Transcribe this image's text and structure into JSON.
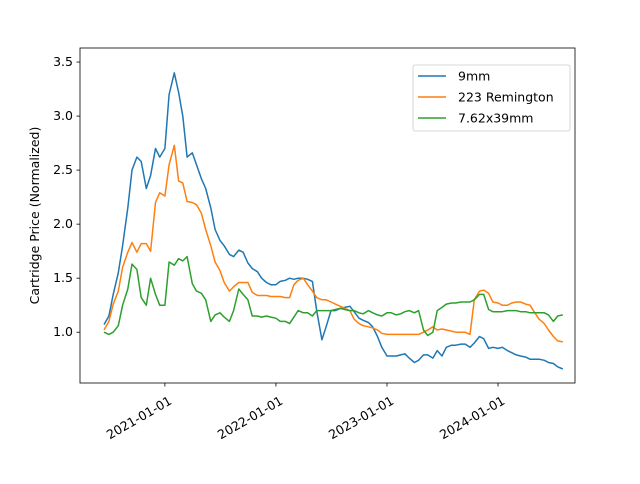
{
  "chart_data": {
    "type": "line",
    "title": "",
    "xlabel": "",
    "ylabel": "Cartridge Price (Normalized)",
    "xlim": [
      "2020-03-28",
      "2024-09-10"
    ],
    "ylim": [
      0.53,
      3.63
    ],
    "yticks": [
      "1.0",
      "1.5",
      "2.0",
      "2.5",
      "3.0",
      "3.5"
    ],
    "xticks": [
      "2021-01-01",
      "2022-01-01",
      "2023-01-01",
      "2024-01-01"
    ],
    "grid": false,
    "legend_position": "top-right",
    "x": [
      "2020-06-15",
      "2020-07-01",
      "2020-07-15",
      "2020-08-01",
      "2020-08-15",
      "2020-09-01",
      "2020-09-15",
      "2020-10-01",
      "2020-10-15",
      "2020-11-01",
      "2020-11-15",
      "2020-12-01",
      "2020-12-15",
      "2021-01-01",
      "2021-01-15",
      "2021-02-01",
      "2021-02-15",
      "2021-03-01",
      "2021-03-15",
      "2021-04-01",
      "2021-04-15",
      "2021-05-01",
      "2021-05-15",
      "2021-06-01",
      "2021-06-15",
      "2021-07-01",
      "2021-07-15",
      "2021-08-01",
      "2021-08-15",
      "2021-09-01",
      "2021-09-15",
      "2021-10-01",
      "2021-10-15",
      "2021-11-01",
      "2021-11-15",
      "2021-12-01",
      "2021-12-15",
      "2022-01-01",
      "2022-01-15",
      "2022-02-01",
      "2022-02-15",
      "2022-03-01",
      "2022-03-15",
      "2022-04-01",
      "2022-04-15",
      "2022-05-01",
      "2022-05-15",
      "2022-06-01",
      "2022-06-15",
      "2022-07-01",
      "2022-07-15",
      "2022-08-01",
      "2022-08-15",
      "2022-09-01",
      "2022-09-15",
      "2022-10-01",
      "2022-10-15",
      "2022-11-01",
      "2022-11-15",
      "2022-12-01",
      "2022-12-15",
      "2023-01-01",
      "2023-01-15",
      "2023-02-01",
      "2023-02-15",
      "2023-03-01",
      "2023-03-15",
      "2023-04-01",
      "2023-04-15",
      "2023-05-01",
      "2023-05-15",
      "2023-06-01",
      "2023-06-15",
      "2023-07-01",
      "2023-07-15",
      "2023-08-01",
      "2023-08-15",
      "2023-09-01",
      "2023-09-15",
      "2023-10-01",
      "2023-10-15",
      "2023-11-01",
      "2023-11-15",
      "2023-12-01",
      "2023-12-15",
      "2024-01-01",
      "2024-01-15",
      "2024-02-01",
      "2024-02-15",
      "2024-03-01",
      "2024-03-15",
      "2024-04-01",
      "2024-04-15",
      "2024-05-01",
      "2024-05-15",
      "2024-06-01",
      "2024-06-15",
      "2024-07-01",
      "2024-07-15",
      "2024-08-01"
    ],
    "series": [
      {
        "name": "9mm",
        "color": "#1f77b4",
        "values": [
          1.07,
          1.15,
          1.35,
          1.55,
          1.8,
          2.15,
          2.5,
          2.62,
          2.58,
          2.33,
          2.45,
          2.7,
          2.62,
          2.7,
          3.2,
          3.4,
          3.22,
          3.0,
          2.62,
          2.66,
          2.55,
          2.42,
          2.33,
          2.15,
          1.95,
          1.85,
          1.8,
          1.72,
          1.7,
          1.76,
          1.74,
          1.64,
          1.59,
          1.56,
          1.5,
          1.46,
          1.44,
          1.44,
          1.47,
          1.48,
          1.5,
          1.49,
          1.5,
          1.5,
          1.49,
          1.47,
          1.2,
          0.93,
          1.05,
          1.2,
          1.2,
          1.22,
          1.23,
          1.24,
          1.19,
          1.13,
          1.11,
          1.09,
          1.05,
          0.96,
          0.86,
          0.78,
          0.78,
          0.78,
          0.79,
          0.8,
          0.76,
          0.72,
          0.74,
          0.79,
          0.79,
          0.76,
          0.83,
          0.78,
          0.86,
          0.88,
          0.88,
          0.89,
          0.89,
          0.86,
          0.9,
          0.96,
          0.94,
          0.85,
          0.86,
          0.85,
          0.86,
          0.83,
          0.81,
          0.79,
          0.78,
          0.77,
          0.75,
          0.75,
          0.75,
          0.74,
          0.72,
          0.71,
          0.68,
          0.66
        ]
      },
      {
        "name": "223 Remington",
        "color": "#ff7f0e",
        "values": [
          1.02,
          1.1,
          1.26,
          1.38,
          1.6,
          1.74,
          1.83,
          1.74,
          1.82,
          1.82,
          1.75,
          2.2,
          2.29,
          2.26,
          2.55,
          2.73,
          2.4,
          2.38,
          2.21,
          2.2,
          2.18,
          2.1,
          1.95,
          1.8,
          1.65,
          1.57,
          1.46,
          1.38,
          1.42,
          1.46,
          1.46,
          1.46,
          1.37,
          1.34,
          1.34,
          1.34,
          1.33,
          1.33,
          1.33,
          1.32,
          1.32,
          1.44,
          1.48,
          1.5,
          1.44,
          1.38,
          1.32,
          1.3,
          1.3,
          1.28,
          1.26,
          1.24,
          1.22,
          1.2,
          1.12,
          1.08,
          1.06,
          1.05,
          1.04,
          1.02,
          0.99,
          0.98,
          0.98,
          0.98,
          0.98,
          0.98,
          0.98,
          0.98,
          0.98,
          1.0,
          1.02,
          1.05,
          1.02,
          1.03,
          1.02,
          1.01,
          1.0,
          1.0,
          1.0,
          0.98,
          1.3,
          1.38,
          1.39,
          1.36,
          1.28,
          1.27,
          1.25,
          1.25,
          1.27,
          1.28,
          1.28,
          1.26,
          1.25,
          1.18,
          1.12,
          1.08,
          1.02,
          0.96,
          0.92,
          0.91
        ]
      },
      {
        "name": "7.62x39mm",
        "color": "#2ca02c",
        "values": [
          1.0,
          0.98,
          1.0,
          1.06,
          1.25,
          1.4,
          1.63,
          1.58,
          1.32,
          1.25,
          1.5,
          1.35,
          1.25,
          1.25,
          1.65,
          1.62,
          1.68,
          1.66,
          1.7,
          1.45,
          1.38,
          1.36,
          1.3,
          1.1,
          1.16,
          1.18,
          1.14,
          1.1,
          1.2,
          1.4,
          1.35,
          1.3,
          1.15,
          1.15,
          1.14,
          1.15,
          1.14,
          1.13,
          1.1,
          1.1,
          1.08,
          1.14,
          1.2,
          1.18,
          1.18,
          1.15,
          1.2,
          1.2,
          1.2,
          1.2,
          1.21,
          1.22,
          1.21,
          1.2,
          1.2,
          1.18,
          1.17,
          1.2,
          1.18,
          1.16,
          1.15,
          1.18,
          1.18,
          1.16,
          1.17,
          1.19,
          1.2,
          1.18,
          1.2,
          1.02,
          0.97,
          1.0,
          1.2,
          1.23,
          1.26,
          1.27,
          1.27,
          1.28,
          1.28,
          1.28,
          1.3,
          1.35,
          1.35,
          1.21,
          1.19,
          1.19,
          1.19,
          1.2,
          1.2,
          1.2,
          1.19,
          1.19,
          1.18,
          1.18,
          1.18,
          1.18,
          1.16,
          1.1,
          1.15,
          1.16
        ]
      }
    ]
  }
}
